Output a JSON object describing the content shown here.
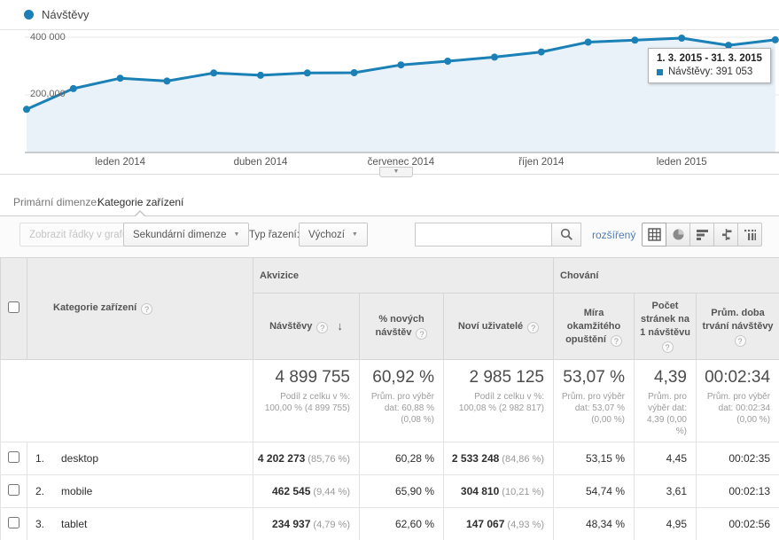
{
  "chart": {
    "legend": {
      "label": "Návštěvy"
    },
    "y_axis": {
      "top_label": "400 000",
      "mid_label": "200,000"
    },
    "tooltip": {
      "title": "1. 3. 2015 - 31. 3. 2015",
      "series": "Návštěvy:",
      "value": "391 053"
    },
    "colors": {
      "line": "#1a80b6",
      "fill": "#e9f2f8",
      "link_blue": "#4d7db8"
    }
  },
  "chart_data": {
    "type": "line",
    "title": "Návštěvy",
    "x": [
      "2013-11",
      "2013-12",
      "2014-01",
      "2014-02",
      "2014-03",
      "2014-04",
      "2014-05",
      "2014-06",
      "2014-07",
      "2014-08",
      "2014-09",
      "2014-10",
      "2014-11",
      "2014-12",
      "2015-01",
      "2015-02",
      "2015-03"
    ],
    "values": [
      150000,
      222000,
      258000,
      248000,
      276000,
      268000,
      276000,
      277000,
      304000,
      317000,
      331000,
      349000,
      383000,
      390000,
      397000,
      372000,
      391053
    ],
    "ylabel": "Návštěvy",
    "ylim": [
      0,
      430000
    ],
    "grid_values": [
      200000,
      400000
    ],
    "tick_indexes": [
      2,
      5,
      8,
      11,
      14
    ],
    "tick_labels": [
      "leden 2014",
      "duben 2014",
      "červenec 2014",
      "říjen 2014",
      "leden 2015"
    ],
    "legend_position": "top-left",
    "highlighted_point": {
      "x": "2015-03",
      "value": 391053,
      "tooltip": "1. 3. 2015 - 31. 3. 2015"
    }
  },
  "primary_dimension": {
    "label": "Primární dimenze:",
    "selected": "Kategorie zařízení"
  },
  "toolbar": {
    "plot_rows_label": "Zobrazit řádky v grafu",
    "secondary_dimension_label": "Sekundární dimenze",
    "sort_type_label": "Typ řazení:",
    "sort_value": "Výchozí",
    "search_value": "",
    "advanced_link": "rozšířený",
    "views": [
      "table",
      "percentage",
      "performance",
      "comparison",
      "pivot"
    ],
    "active_view": "table"
  },
  "icons": {
    "help": "?",
    "caret_down": "▼",
    "sort_desc": "↓"
  },
  "table": {
    "groups": {
      "acquisition": "Akvizice",
      "behavior": "Chování"
    },
    "headers": {
      "dimension": "Kategorie zařízení",
      "visits": "Návštěvy",
      "new_visits_pct": "% nových návštěv",
      "new_users": "Noví uživatelé",
      "bounce_rate": "Míra okamžitého opuštění",
      "pages_per_visit": "Počet stránek na 1 návštěvu",
      "avg_duration": "Prům. doba trvání návštěvy"
    },
    "summary": {
      "visits": "4 899 755",
      "visits_sub": "Podíl z celku v %: 100,00 % (4 899 755)",
      "new_visits_pct": "60,92 %",
      "new_visits_sub": "Prům. pro výběr dat: 60,88 % (0,08 %)",
      "new_users": "2 985 125",
      "new_users_sub": "Podíl z celku v %: 100,08 % (2 982 817)",
      "bounce_rate": "53,07 %",
      "bounce_sub": "Prům. pro výběr dat: 53,07 % (0,00 %)",
      "pages": "4,39",
      "pages_sub": "Prům. pro výběr dat: 4,39 (0,00 %)",
      "duration": "00:02:34",
      "duration_sub": "Prům. pro výběr dat: 00:02:34 (0,00 %)"
    },
    "rows": [
      {
        "index": "1.",
        "name": "desktop",
        "visits": "4 202 273",
        "visits_pct": "(85,76 %)",
        "new_visits_pct": "60,28 %",
        "new_users": "2 533 248",
        "new_users_pct": "(84,86 %)",
        "bounce_rate": "53,15 %",
        "pages": "4,45",
        "duration": "00:02:35"
      },
      {
        "index": "2.",
        "name": "mobile",
        "visits": "462 545",
        "visits_pct": "(9,44 %)",
        "new_visits_pct": "65,90 %",
        "new_users": "304 810",
        "new_users_pct": "(10,21 %)",
        "bounce_rate": "54,74 %",
        "pages": "3,61",
        "duration": "00:02:13"
      },
      {
        "index": "3.",
        "name": "tablet",
        "visits": "234 937",
        "visits_pct": "(4,79 %)",
        "new_visits_pct": "62,60 %",
        "new_users": "147 067",
        "new_users_pct": "(4,93 %)",
        "bounce_rate": "48,34 %",
        "pages": "4,95",
        "duration": "00:02:56"
      }
    ]
  }
}
